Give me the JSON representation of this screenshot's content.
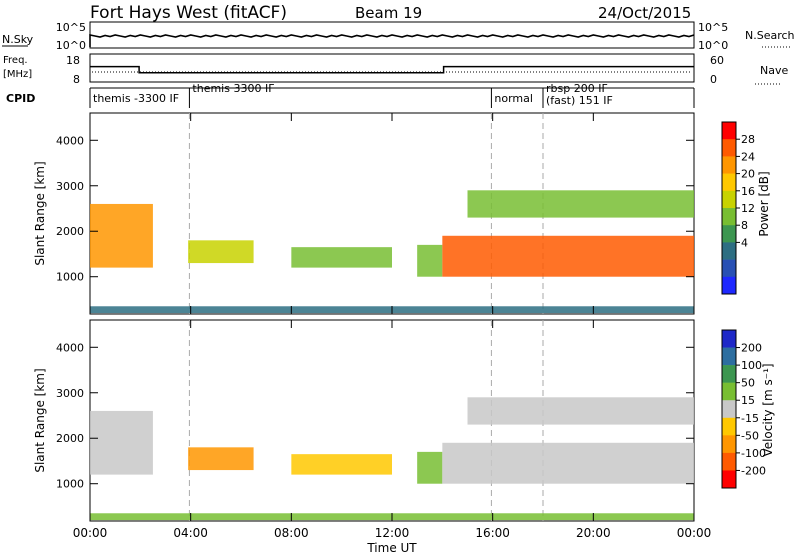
{
  "header": {
    "station": "Fort Hays West (fitACF)",
    "beam": "Beam 19",
    "date": "24/Oct/2015"
  },
  "top_panels": {
    "nsky_label": "N.Sky",
    "nsky_ticks": [
      "10^5",
      "10^0"
    ],
    "nsearch_label": "N.Search",
    "nsearch_ticks": [
      "10^5",
      "10^0"
    ],
    "freq_label_1": "Freq.",
    "freq_label_2": "[MHz]",
    "freq_ticks": [
      "18",
      "8"
    ],
    "nave_label": "Nave",
    "nave_ticks": [
      "60",
      "0"
    ],
    "cpid_label": "CPID"
  },
  "cpid_segments": [
    {
      "start": 0.0,
      "label": "themis -3300 IF"
    },
    {
      "start": 3.95,
      "label": "themis 3300 IF"
    },
    {
      "start": 15.95,
      "label": "normal"
    },
    {
      "start": 18.0,
      "label": "rbsp 200 IF"
    },
    {
      "start": 18.0,
      "label": "(fast) 151 IF"
    }
  ],
  "freq_series": {
    "hours": [
      0,
      1.95,
      1.95,
      14.05,
      14.05,
      24
    ],
    "mhz": [
      13.5,
      13.5,
      11.3,
      11.3,
      13.5,
      13.5
    ]
  },
  "colorbars": {
    "power": {
      "label": "Power [dB]",
      "ticks": [
        "28",
        "24",
        "20",
        "16",
        "12",
        "8",
        "4"
      ],
      "colors": [
        "#ff0000",
        "#ff5a00",
        "#ff9600",
        "#ffc800",
        "#c8d200",
        "#78be32",
        "#3c9650",
        "#2d6e82",
        "#2850b4",
        "#1e28ff"
      ]
    },
    "velocity": {
      "label": "Velocity [m s⁻¹]",
      "ticks": [
        "200",
        "100",
        "50",
        "15",
        "-15",
        "-50",
        "-100",
        "-200"
      ],
      "colors": [
        "#1e28c8",
        "#2d6ea0",
        "#3c9650",
        "#78be32",
        "#c8c8c8",
        "#ffc800",
        "#ff9600",
        "#ff5a00",
        "#ff0000"
      ]
    }
  },
  "chart_data": {
    "type": "heatmap",
    "xlabel": "Time UT",
    "xticks": [
      "00:00",
      "04:00",
      "08:00",
      "12:00",
      "16:00",
      "20:00",
      "00:00"
    ],
    "xlim_hours": [
      0,
      24
    ],
    "ylabel": "Slant Range [km]",
    "yticks": [
      1000,
      2000,
      3000,
      4000
    ],
    "ylim_km": [
      180,
      4600
    ],
    "echo_bands": [
      {
        "t0": 0.0,
        "t1": 2.5,
        "r0": 1200,
        "r1": 2600,
        "power_db": 24,
        "velocity": -15
      },
      {
        "t0": 3.9,
        "t1": 6.5,
        "r0": 1300,
        "r1": 1800,
        "power_db": 18,
        "velocity": -100
      },
      {
        "t0": 8.0,
        "t1": 12.0,
        "r0": 1200,
        "r1": 1650,
        "power_db": 14,
        "velocity": -50
      },
      {
        "t0": 13.0,
        "t1": 14.0,
        "r0": 1000,
        "r1": 1700,
        "power_db": 16,
        "velocity": 15
      },
      {
        "t0": 14.0,
        "t1": 24.0,
        "r0": 1000,
        "r1": 1900,
        "power_db": 26,
        "velocity": -15
      },
      {
        "t0": 15.0,
        "t1": 24.0,
        "r0": 2300,
        "r1": 2900,
        "power_db": 14,
        "velocity": -15
      },
      {
        "t0": 0.0,
        "t1": 24.0,
        "r0": 200,
        "r1": 350,
        "power_db": 8,
        "velocity": 15
      }
    ]
  }
}
